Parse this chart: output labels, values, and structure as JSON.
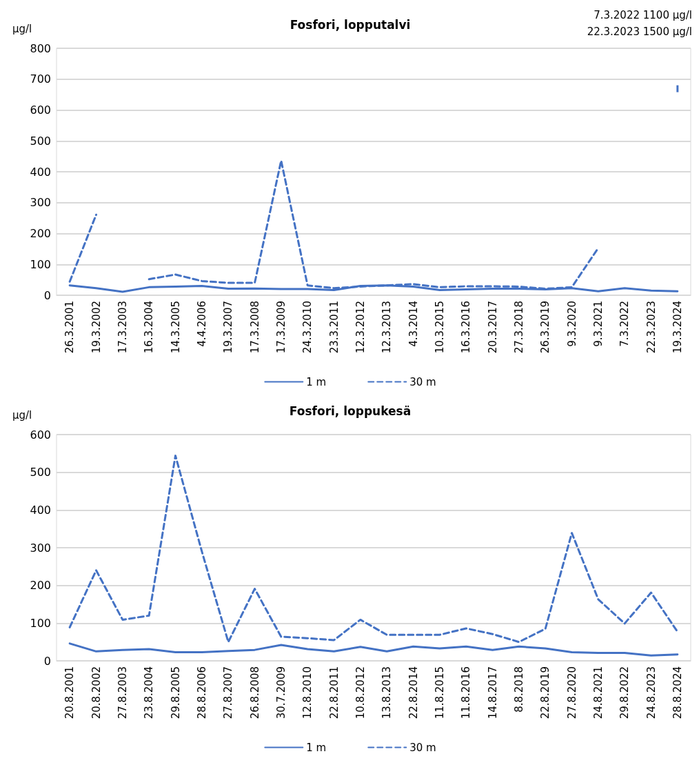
{
  "chart_data": [
    {
      "type": "line",
      "title": "Fosfori, lopputalvi",
      "ylabel": "µg/l",
      "annotations": [
        "7.3.2022 1100 µg/l",
        "22.3.2023 1500 µg/l"
      ],
      "categories": [
        "26.3.2001",
        "19.3.2002",
        "17.3.2003",
        "16.3.2004",
        "14.3.2005",
        "4.4.2006",
        "19.3.2007",
        "17.3.2008",
        "17.3.2009",
        "24.3.2010",
        "23.3.2011",
        "12.3.2012",
        "12.3.2013",
        "4.3.2014",
        "10.3.2015",
        "16.3.2016",
        "20.3.2017",
        "27.3.2018",
        "26.3.2019",
        "9.3.2020",
        "9.3.2021",
        "7.3.2022",
        "22.3.2023",
        "19.3.2024"
      ],
      "series": [
        {
          "name": "1 m",
          "color": "#4472c4",
          "line_style": "solid",
          "values": [
            32,
            23,
            11,
            26,
            28,
            30,
            21,
            22,
            20,
            20,
            17,
            30,
            32,
            28,
            17,
            19,
            21,
            21,
            19,
            23,
            13,
            23,
            15,
            13
          ]
        },
        {
          "name": "30 m",
          "color": "#4472c4",
          "line_style": "dashed",
          "values": [
            44,
            261,
            null,
            52,
            67,
            46,
            40,
            40,
            436,
            32,
            23,
            28,
            32,
            36,
            26,
            29,
            29,
            28,
            21,
            26,
            153,
            null,
            null,
            669
          ]
        }
      ],
      "ylim": [
        0,
        800
      ],
      "yticks": [
        0,
        100,
        200,
        300,
        400,
        500,
        600,
        700,
        800
      ],
      "grid": "y",
      "legend": "bottom",
      "marker": "none"
    },
    {
      "type": "line",
      "title": "Fosfori, loppukesä",
      "ylabel": "µg/l",
      "categories": [
        "20.8.2001",
        "20.8.2002",
        "27.8.2003",
        "23.8.2004",
        "29.8.2005",
        "28.8.2006",
        "27.8.2007",
        "26.8.2008",
        "30.7.2009",
        "12.8.2010",
        "22.8.2011",
        "10.8.2012",
        "13.8.2013",
        "22.8.2014",
        "11.8.2015",
        "11.8.2016",
        "14.8.2017",
        "8.8.2018",
        "22.8.2019",
        "27.8.2020",
        "24.8.2021",
        "29.8.2022",
        "24.8.2023",
        "28.8.2024"
      ],
      "series": [
        {
          "name": "1 m",
          "color": "#4472c4",
          "line_style": "solid",
          "values": [
            46,
            25,
            29,
            31,
            23,
            23,
            26,
            29,
            42,
            31,
            25,
            37,
            25,
            38,
            33,
            38,
            29,
            38,
            33,
            23,
            21,
            21,
            14,
            17
          ]
        },
        {
          "name": "30 m",
          "color": "#4472c4",
          "line_style": "dashed",
          "values": [
            89,
            240,
            109,
            120,
            544,
            290,
            50,
            191,
            64,
            60,
            55,
            109,
            69,
            69,
            69,
            86,
            71,
            50,
            85,
            339,
            163,
            99,
            181,
            77
          ]
        }
      ],
      "ylim": [
        0,
        600
      ],
      "yticks": [
        0,
        100,
        200,
        300,
        400,
        500,
        600
      ],
      "grid": "y",
      "legend": "bottom",
      "marker": "none"
    }
  ]
}
